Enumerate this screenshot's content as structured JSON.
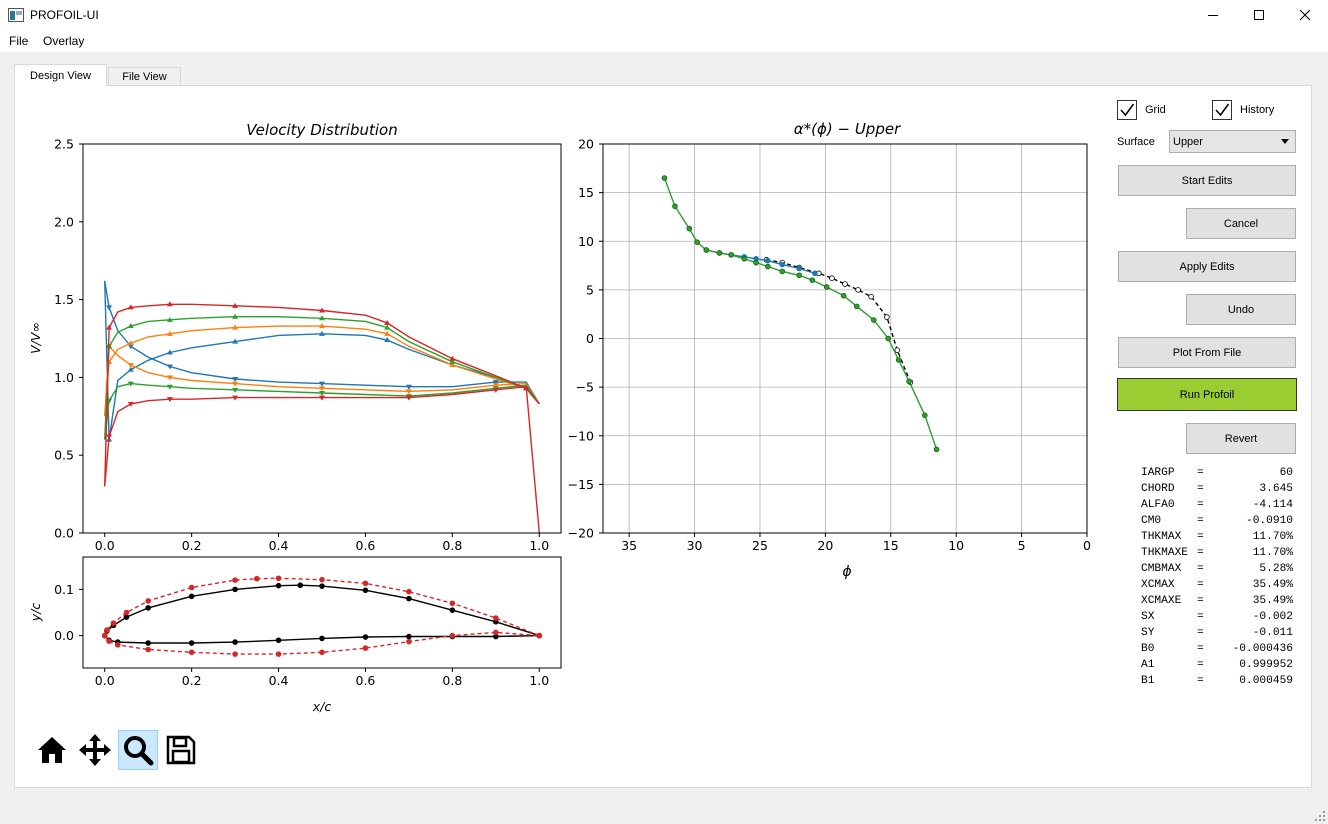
{
  "window": {
    "title": "PROFOIL-UI"
  },
  "menu": {
    "file": "File",
    "overlay": "Overlay"
  },
  "tabs": {
    "design": "Design View",
    "file": "File View"
  },
  "controls": {
    "grid_label": "Grid",
    "grid_checked": true,
    "history_label": "History",
    "history_checked": true,
    "surface_label": "Surface",
    "surface_value": "Upper"
  },
  "buttons": {
    "start_edits": "Start Edits",
    "cancel": "Cancel",
    "apply_edits": "Apply Edits",
    "undo": "Undo",
    "plot_from_file": "Plot From File",
    "run_profoil": "Run Profoil",
    "revert": "Revert"
  },
  "colors": {
    "run_button": "#9acd32",
    "c_blue": "#1f77b4",
    "c_orange": "#ff7f0e",
    "c_green": "#2ca02c",
    "c_red": "#d62728"
  },
  "stats": [
    {
      "key": "IARGP",
      "value": "60"
    },
    {
      "key": "CHORD",
      "value": "3.645"
    },
    {
      "key": "ALFA0",
      "value": "-4.114"
    },
    {
      "key": "CM0",
      "value": "-0.0910"
    },
    {
      "key": "THKMAX",
      "value": "11.70%"
    },
    {
      "key": "THKMAXE",
      "value": "11.70%"
    },
    {
      "key": "CMBMAX",
      "value": "5.28%"
    },
    {
      "key": "XCMAX",
      "value": "35.49%"
    },
    {
      "key": "XCMAXE",
      "value": "35.49%"
    },
    {
      "key": "SX",
      "value": "-0.002"
    },
    {
      "key": "SY",
      "value": "-0.011"
    },
    {
      "key": "B0",
      "value": "-0.000436"
    },
    {
      "key": "A1",
      "value": "0.999952"
    },
    {
      "key": "B1",
      "value": "0.000459"
    }
  ],
  "toolbar": {
    "home": "home-icon",
    "pan": "move-icon",
    "zoom": "zoom-icon",
    "save": "save-icon"
  },
  "chart_data": [
    {
      "type": "line",
      "title": "Velocity Distribution",
      "xlabel": "",
      "ylabel": "V/V∞",
      "xlim": [
        -0.05,
        1.05
      ],
      "ylim": [
        0,
        2.5
      ],
      "xticks": [
        "0.0",
        "0.2",
        "0.4",
        "0.6",
        "0.8",
        "1.0"
      ],
      "yticks": [
        "0.0",
        "0.5",
        "1.0",
        "1.5",
        "2.0",
        "2.5"
      ],
      "grid": false,
      "series": [
        {
          "color": "blue",
          "surface": "upper",
          "x": [
            0.0,
            0.01,
            0.03,
            0.06,
            0.1,
            0.15,
            0.2,
            0.3,
            0.4,
            0.5,
            0.6,
            0.65,
            0.7,
            0.8,
            0.9,
            0.97,
            1.0
          ],
          "y": [
            1.62,
            0.6,
            0.98,
            1.05,
            1.11,
            1.16,
            1.19,
            1.23,
            1.27,
            1.28,
            1.27,
            1.24,
            1.18,
            1.08,
            1.0,
            0.93,
            0.83
          ]
        },
        {
          "color": "blue",
          "surface": "lower",
          "x": [
            0.0,
            0.01,
            0.03,
            0.06,
            0.1,
            0.15,
            0.2,
            0.3,
            0.4,
            0.5,
            0.6,
            0.7,
            0.8,
            0.9,
            0.97,
            1.0
          ],
          "y": [
            1.62,
            1.45,
            1.3,
            1.2,
            1.13,
            1.07,
            1.03,
            0.99,
            0.97,
            0.96,
            0.95,
            0.94,
            0.94,
            0.97,
            0.97,
            0.83
          ]
        },
        {
          "color": "orange",
          "surface": "upper",
          "x": [
            0.0,
            0.01,
            0.03,
            0.06,
            0.1,
            0.15,
            0.2,
            0.3,
            0.4,
            0.5,
            0.6,
            0.65,
            0.7,
            0.8,
            0.9,
            0.97,
            1.0
          ],
          "y": [
            0.75,
            1.1,
            1.18,
            1.22,
            1.26,
            1.28,
            1.3,
            1.32,
            1.33,
            1.33,
            1.31,
            1.28,
            1.2,
            1.08,
            0.99,
            0.93,
            0.83
          ]
        },
        {
          "color": "orange",
          "surface": "lower",
          "x": [
            0.0,
            0.01,
            0.03,
            0.06,
            0.1,
            0.15,
            0.2,
            0.3,
            0.4,
            0.5,
            0.6,
            0.7,
            0.8,
            0.9,
            0.97,
            1.0
          ],
          "y": [
            0.75,
            1.2,
            1.14,
            1.08,
            1.03,
            1.0,
            0.98,
            0.96,
            0.94,
            0.93,
            0.92,
            0.91,
            0.92,
            0.95,
            0.96,
            0.83
          ]
        },
        {
          "color": "green",
          "surface": "upper",
          "x": [
            0.0,
            0.01,
            0.03,
            0.06,
            0.1,
            0.15,
            0.2,
            0.3,
            0.4,
            0.5,
            0.6,
            0.65,
            0.7,
            0.8,
            0.9,
            0.97,
            1.0
          ],
          "y": [
            0.6,
            1.2,
            1.29,
            1.33,
            1.36,
            1.37,
            1.38,
            1.39,
            1.39,
            1.38,
            1.36,
            1.32,
            1.23,
            1.1,
            1.0,
            0.93,
            0.83
          ]
        },
        {
          "color": "green",
          "surface": "lower",
          "x": [
            0.0,
            0.01,
            0.03,
            0.06,
            0.1,
            0.15,
            0.2,
            0.3,
            0.4,
            0.5,
            0.6,
            0.7,
            0.8,
            0.9,
            0.97,
            1.0
          ],
          "y": [
            0.6,
            0.85,
            0.94,
            0.96,
            0.95,
            0.94,
            0.93,
            0.92,
            0.91,
            0.9,
            0.89,
            0.88,
            0.9,
            0.93,
            0.95,
            0.83
          ]
        },
        {
          "color": "red",
          "surface": "upper",
          "x": [
            0.0,
            0.01,
            0.03,
            0.06,
            0.1,
            0.15,
            0.2,
            0.3,
            0.4,
            0.5,
            0.6,
            0.65,
            0.7,
            0.8,
            0.9,
            0.97,
            1.0
          ],
          "y": [
            0.3,
            1.32,
            1.42,
            1.45,
            1.46,
            1.47,
            1.47,
            1.46,
            1.45,
            1.43,
            1.4,
            1.35,
            1.26,
            1.12,
            1.01,
            0.93,
            0.83
          ]
        },
        {
          "color": "red",
          "surface": "lower",
          "x": [
            0.0,
            0.01,
            0.03,
            0.06,
            0.1,
            0.15,
            0.2,
            0.3,
            0.4,
            0.5,
            0.6,
            0.7,
            0.8,
            0.9,
            0.97,
            1.0
          ],
          "y": [
            0.3,
            0.62,
            0.78,
            0.83,
            0.85,
            0.86,
            0.86,
            0.87,
            0.87,
            0.87,
            0.87,
            0.87,
            0.89,
            0.92,
            0.94,
            0.0
          ]
        }
      ]
    },
    {
      "type": "line",
      "title": "",
      "xlabel": "x/c",
      "ylabel": "y/c",
      "xlim": [
        -0.05,
        1.05
      ],
      "ylim": [
        -0.07,
        0.17
      ],
      "xticks": [
        "0.0",
        "0.2",
        "0.4",
        "0.6",
        "0.8",
        "1.0"
      ],
      "yticks": [
        "0.0",
        "0.1"
      ],
      "grid": false,
      "series": [
        {
          "color": "black",
          "x": [
            1.0,
            0.9,
            0.8,
            0.7,
            0.6,
            0.5,
            0.45,
            0.4,
            0.3,
            0.2,
            0.1,
            0.05,
            0.02,
            0.005,
            0.0
          ],
          "y": [
            0.0,
            0.03,
            0.055,
            0.08,
            0.098,
            0.107,
            0.109,
            0.108,
            0.1,
            0.085,
            0.06,
            0.04,
            0.022,
            0.01,
            0.0
          ]
        },
        {
          "color": "black",
          "x": [
            0.0,
            0.01,
            0.03,
            0.1,
            0.2,
            0.3,
            0.4,
            0.5,
            0.6,
            0.7,
            0.8,
            0.9,
            1.0
          ],
          "y": [
            0.0,
            -0.01,
            -0.014,
            -0.016,
            -0.016,
            -0.014,
            -0.01,
            -0.006,
            -0.003,
            -0.002,
            -0.002,
            -0.002,
            0.0
          ]
        },
        {
          "color": "red",
          "x": [
            1.0,
            0.9,
            0.8,
            0.7,
            0.6,
            0.5,
            0.4,
            0.35,
            0.3,
            0.2,
            0.1,
            0.05,
            0.02,
            0.005,
            0.0
          ],
          "y": [
            0.0,
            0.038,
            0.07,
            0.095,
            0.113,
            0.121,
            0.124,
            0.123,
            0.12,
            0.104,
            0.075,
            0.05,
            0.027,
            0.012,
            0.0
          ]
        },
        {
          "color": "red",
          "x": [
            0.0,
            0.01,
            0.03,
            0.1,
            0.2,
            0.3,
            0.4,
            0.5,
            0.6,
            0.7,
            0.8,
            0.9,
            1.0
          ],
          "y": [
            0.0,
            -0.012,
            -0.02,
            -0.03,
            -0.036,
            -0.04,
            -0.04,
            -0.036,
            -0.027,
            -0.013,
            0.0,
            0.007,
            0.0
          ]
        }
      ]
    },
    {
      "type": "line",
      "title": "α*(ϕ) − Upper",
      "xlabel": "ϕ",
      "ylabel": "",
      "xlim": [
        37,
        0
      ],
      "ylim": [
        -20,
        20
      ],
      "xticks": [
        "35",
        "30",
        "25",
        "20",
        "15",
        "10",
        "5",
        "0"
      ],
      "yticks": [
        "−20",
        "−15",
        "−10",
        "−5",
        "0",
        "5",
        "10",
        "15",
        "20"
      ],
      "grid": true,
      "series": [
        {
          "color": "black-dashed",
          "x": [
            24.5,
            23.3,
            22,
            20.5,
            19.5,
            18.5,
            17.5,
            16.5,
            15.3,
            14.5,
            13.5
          ],
          "y": [
            8.1,
            7.8,
            7.3,
            6.7,
            6.2,
            5.6,
            5.0,
            4.3,
            2.2,
            -1.2,
            -4.5
          ]
        },
        {
          "color": "blue",
          "x": [
            29.1,
            28.1,
            27.2,
            26.2,
            25.3,
            24.4,
            23.3,
            22.0,
            20.8
          ],
          "y": [
            9.1,
            8.8,
            8.6,
            8.4,
            8.2,
            8.0,
            7.6,
            7.2,
            6.7
          ]
        },
        {
          "color": "green",
          "x": [
            32.3,
            31.5,
            30.4,
            29.8,
            29.1,
            28.1,
            27.2,
            26.2,
            25.3,
            24.4,
            23.3,
            22.0,
            21.0,
            19.9,
            18.6,
            17.6,
            16.3,
            15.2,
            14.4,
            13.6,
            12.4,
            11.5
          ],
          "y": [
            16.5,
            13.6,
            11.3,
            9.9,
            9.1,
            8.8,
            8.6,
            8.2,
            7.8,
            7.4,
            6.9,
            6.5,
            6.0,
            5.3,
            4.4,
            3.3,
            1.9,
            0.0,
            -2.2,
            -4.4,
            -7.9,
            -11.4
          ]
        }
      ]
    }
  ]
}
